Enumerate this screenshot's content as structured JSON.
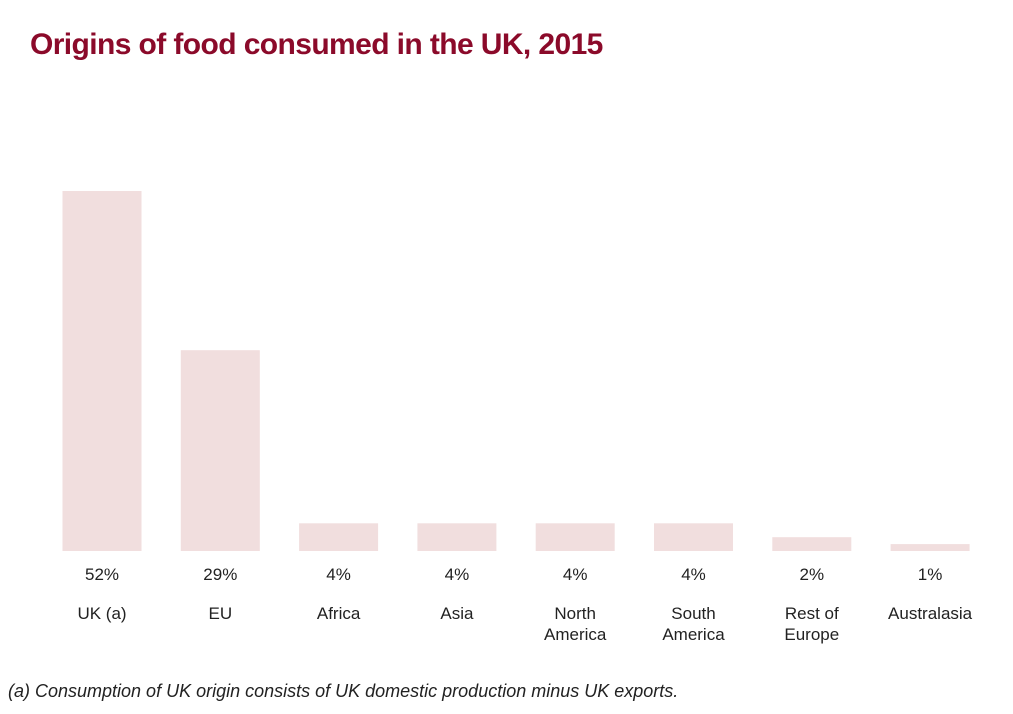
{
  "title": "Origins of food consumed in the UK, 2015",
  "footnote": "(a) Consumption of UK origin consists of UK domestic production minus UK exports.",
  "colors": {
    "title": "#8b0a2a",
    "bar": "#f1dede",
    "text": "#222222",
    "background": "#ffffff"
  },
  "chart_data": {
    "type": "bar",
    "categories": [
      [
        "UK (a)"
      ],
      [
        "EU"
      ],
      [
        "Africa"
      ],
      [
        "Asia"
      ],
      [
        "North",
        "America"
      ],
      [
        "South",
        "America"
      ],
      [
        "Rest of",
        "Europe"
      ],
      [
        "Australasia"
      ]
    ],
    "values": [
      52,
      29,
      4,
      4,
      4,
      4,
      2,
      1
    ],
    "value_labels": [
      "52%",
      "29%",
      "4%",
      "4%",
      "4%",
      "4%",
      "2%",
      "1%"
    ],
    "unit": "%",
    "ylim": [
      0,
      52
    ],
    "grid": false,
    "legend": "none",
    "axes_visible": false
  }
}
